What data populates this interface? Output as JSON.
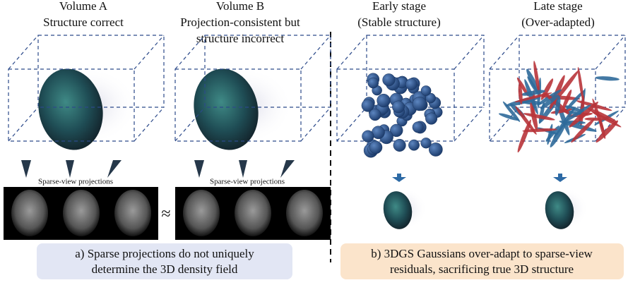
{
  "panel_a": {
    "volume_a": {
      "title": "Volume A",
      "subtitle": "Structure correct"
    },
    "volume_b": {
      "title": "Volume B",
      "subtitle_lines": [
        "Projection-consistent but",
        "structure incorrect"
      ]
    },
    "projection_labels": [
      "Sparse-view projections",
      "Sparse-view projections"
    ],
    "approx_symbol": "≈",
    "caption_lines": [
      "a) Sparse projections do not uniquely",
      "determine the 3D density field"
    ]
  },
  "panel_b": {
    "early": {
      "title": "Early stage",
      "subtitle": "(Stable structure)"
    },
    "late": {
      "title": "Late stage",
      "subtitle": "(Over-adapted)"
    },
    "caption_lines": [
      "b) 3DGS Gaussians over-adapt to sparse-view",
      "residuals, sacrificing true 3D structure"
    ]
  }
}
